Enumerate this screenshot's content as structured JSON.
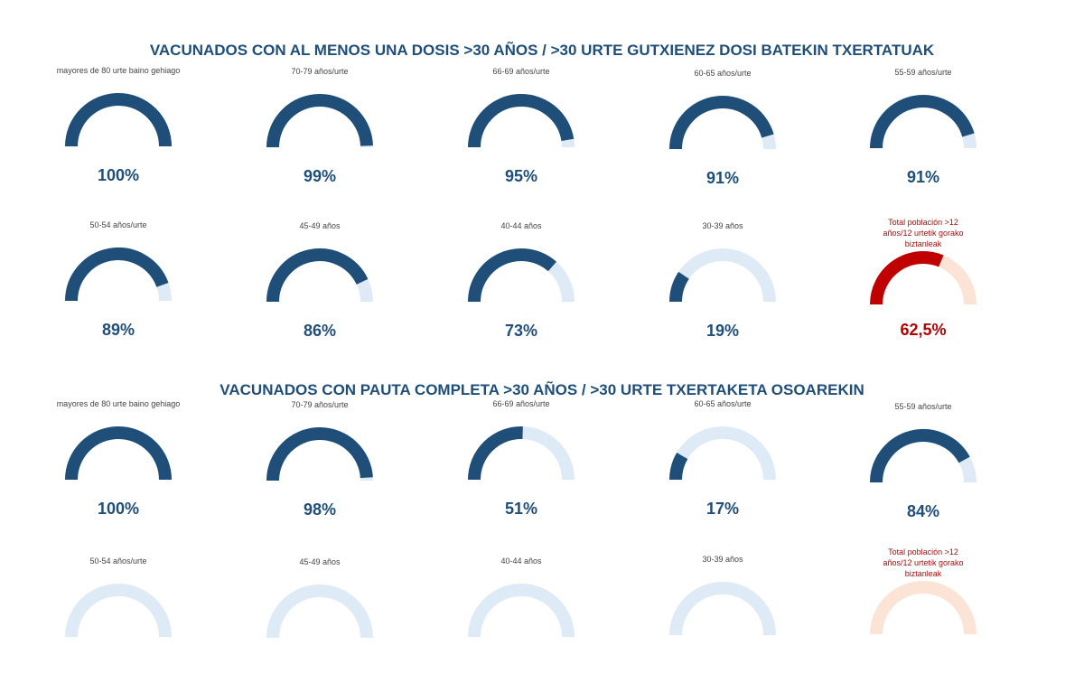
{
  "colors": {
    "fill": "#1f4e79",
    "track": "#deebf7",
    "total_fill": "#c00000",
    "total_track": "#fbe3d6"
  },
  "chart_data": [
    {
      "type": "gauge",
      "title": "VACUNADOS CON AL MENOS UNA DOSIS >30 AÑOS / >30 URTE GUTXIENEZ DOSI BATEKIN TXERTATUAK",
      "gauges": [
        {
          "label": "mayores de 80 urte baino gehiago",
          "value": 100,
          "display": "100%"
        },
        {
          "label": "70-79 años/urte",
          "value": 99,
          "display": "99%"
        },
        {
          "label": "66-69 años/urte",
          "value": 95,
          "display": "95%"
        },
        {
          "label": "60-65 años/urte",
          "value": 91,
          "display": "91%"
        },
        {
          "label": "55-59 años/urte",
          "value": 91,
          "display": "91%"
        },
        {
          "label": "50-54 años/urte",
          "value": 89,
          "display": "89%"
        },
        {
          "label": "45-49 años",
          "value": 86,
          "display": "86%"
        },
        {
          "label": "40-44 años",
          "value": 73,
          "display": "73%"
        },
        {
          "label": "30-39 años",
          "value": 19,
          "display": "19%"
        },
        {
          "label": "Total población >12 años/12 urtetik gorako biztanleak",
          "value": 62.5,
          "display": "62,5%",
          "total": true
        }
      ]
    },
    {
      "type": "gauge",
      "title": "VACUNADOS CON PAUTA COMPLETA >30 AÑOS / >30 URTE TXERTAKETA OSOAREKIN",
      "gauges": [
        {
          "label": "mayores de 80 urte baino gehiago",
          "value": 100,
          "display": "100%"
        },
        {
          "label": "70-79 años/urte",
          "value": 98,
          "display": "98%"
        },
        {
          "label": "66-69 años/urte",
          "value": 51,
          "display": "51%"
        },
        {
          "label": "60-65 años/urte",
          "value": 17,
          "display": "17%"
        },
        {
          "label": "55-59 años/urte",
          "value": 84,
          "display": "84%"
        },
        {
          "label": "50-54 años/urte",
          "value": null,
          "display": ""
        },
        {
          "label": "45-49 años",
          "value": null,
          "display": ""
        },
        {
          "label": "40-44 años",
          "value": null,
          "display": ""
        },
        {
          "label": "30-39 años",
          "value": null,
          "display": ""
        },
        {
          "label": "Total población >12 años/12 urtetik gorako biztanleak",
          "value": null,
          "display": "",
          "total": true
        }
      ]
    }
  ]
}
